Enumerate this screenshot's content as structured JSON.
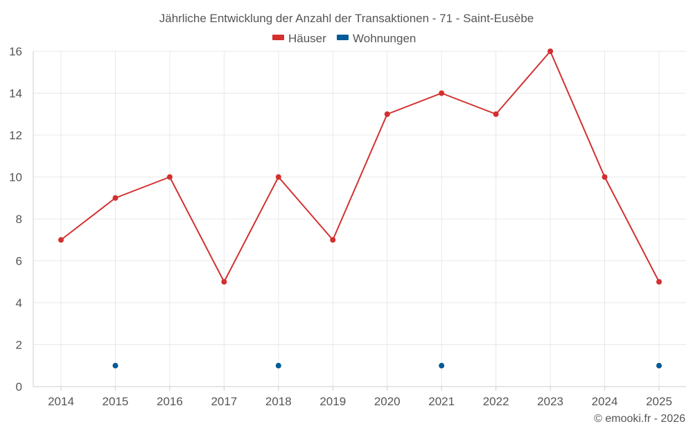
{
  "chart_data": {
    "type": "line",
    "title": "Jährliche Entwicklung der Anzahl der Transaktionen - 71 - Saint-Eusèbe",
    "categories": [
      "2014",
      "2015",
      "2016",
      "2017",
      "2018",
      "2019",
      "2020",
      "2021",
      "2022",
      "2023",
      "2024",
      "2025"
    ],
    "ylim": [
      0,
      16
    ],
    "yticks": [
      0,
      2,
      4,
      6,
      8,
      10,
      12,
      14,
      16
    ],
    "grid": true,
    "legend_position": "top-center",
    "series": [
      {
        "name": "Häuser",
        "color": "#d32f2f",
        "style": "line",
        "values": [
          7,
          9,
          10,
          5,
          10,
          7,
          13,
          14,
          13,
          16,
          10,
          5
        ]
      },
      {
        "name": "Wohnungen",
        "color": "#005b96",
        "style": "points",
        "values": [
          null,
          1,
          null,
          null,
          1,
          null,
          null,
          1,
          null,
          null,
          null,
          1
        ]
      }
    ],
    "credit": "© emooki.fr - 2026"
  }
}
